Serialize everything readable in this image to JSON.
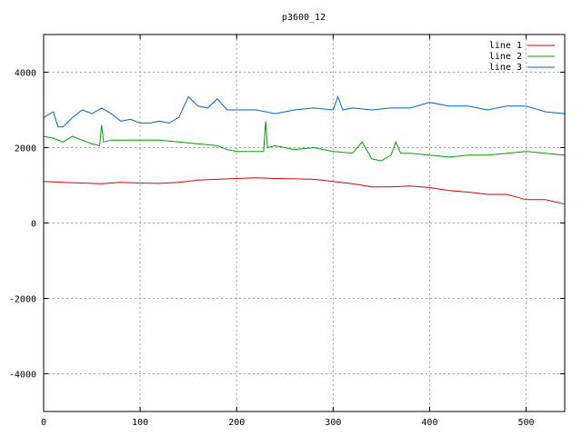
{
  "chart_data": {
    "type": "line",
    "title": "p3600_12",
    "xlabel": "",
    "ylabel": "",
    "xlim": [
      0,
      540
    ],
    "ylim": [
      -5000,
      5000
    ],
    "xticks": [
      0,
      100,
      200,
      300,
      400,
      500
    ],
    "yticks": [
      -4000,
      -2000,
      0,
      2000,
      4000
    ],
    "grid": true,
    "legend_position": "top-right",
    "series": [
      {
        "name": "line 1",
        "color": "#e00000",
        "x": [
          0,
          20,
          40,
          60,
          80,
          100,
          120,
          140,
          160,
          180,
          200,
          220,
          240,
          260,
          280,
          300,
          320,
          340,
          360,
          380,
          400,
          420,
          440,
          460,
          480,
          500,
          520,
          540
        ],
        "y": [
          1100,
          1080,
          1060,
          1040,
          1080,
          1060,
          1050,
          1080,
          1140,
          1160,
          1180,
          1200,
          1180,
          1170,
          1160,
          1100,
          1040,
          960,
          960,
          980,
          940,
          860,
          820,
          760,
          760,
          620,
          620,
          500
        ]
      },
      {
        "name": "line 2",
        "color": "#00a000",
        "x": [
          0,
          10,
          20,
          30,
          40,
          50,
          58,
          60,
          62,
          70,
          80,
          100,
          120,
          140,
          160,
          180,
          190,
          200,
          210,
          220,
          228,
          230,
          232,
          240,
          260,
          280,
          300,
          320,
          330,
          340,
          350,
          360,
          365,
          370,
          380,
          400,
          420,
          440,
          460,
          480,
          500,
          520,
          540
        ],
        "y": [
          2300,
          2250,
          2150,
          2300,
          2200,
          2100,
          2050,
          2600,
          2150,
          2200,
          2200,
          2200,
          2200,
          2150,
          2100,
          2050,
          1950,
          1900,
          1900,
          1900,
          1900,
          2700,
          2000,
          2050,
          1950,
          2000,
          1900,
          1850,
          2150,
          1700,
          1650,
          1800,
          2150,
          1850,
          1850,
          1800,
          1750,
          1800,
          1800,
          1850,
          1900,
          1850,
          1800
        ]
      },
      {
        "name": "line 3",
        "color": "#0066cc",
        "x": [
          0,
          10,
          15,
          20,
          30,
          40,
          50,
          60,
          70,
          80,
          90,
          100,
          110,
          120,
          130,
          140,
          150,
          160,
          170,
          180,
          190,
          200,
          220,
          240,
          260,
          280,
          300,
          305,
          310,
          320,
          340,
          360,
          380,
          400,
          420,
          440,
          460,
          480,
          500,
          520,
          540
        ],
        "y": [
          2800,
          2950,
          2550,
          2550,
          2800,
          3000,
          2900,
          3050,
          2900,
          2700,
          2750,
          2650,
          2650,
          2700,
          2650,
          2800,
          3350,
          3100,
          3050,
          3300,
          3000,
          3000,
          3000,
          2900,
          3000,
          3050,
          3000,
          3350,
          3000,
          3050,
          3000,
          3050,
          3050,
          3200,
          3100,
          3100,
          3000,
          3100,
          3100,
          2950,
          2900
        ]
      }
    ]
  }
}
